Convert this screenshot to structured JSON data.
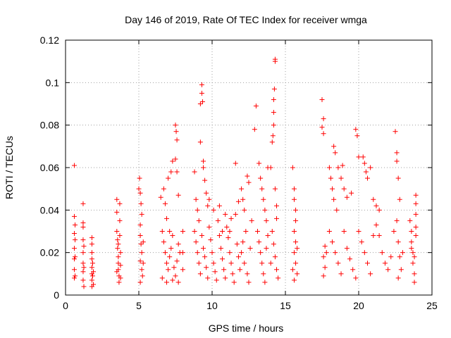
{
  "chart_data": {
    "type": "scatter",
    "title": "Day 146 of 2019, Rate Of TEC Index for receiver wmga",
    "xlabel": "GPS time / hours",
    "ylabel": "ROTI / TECUs",
    "xlim": [
      0,
      25
    ],
    "ylim": [
      0,
      0.12
    ],
    "xticks": [
      0,
      5,
      10,
      15,
      20,
      25
    ],
    "xtick_labels": [
      "0",
      "5",
      "10",
      "15",
      "20",
      "25"
    ],
    "yticks": [
      0,
      0.02,
      0.04,
      0.06,
      0.08,
      0.1,
      0.12
    ],
    "ytick_labels": [
      "0",
      "0.02",
      "0.04",
      "0.06",
      "0.08",
      "0.1",
      "0.12"
    ],
    "grid": true,
    "marker": "+",
    "marker_color": "#ff0000",
    "series": [
      {
        "points": [
          [
            0.6,
            0.061
          ],
          [
            0.6,
            0.037
          ],
          [
            0.6,
            0.029
          ],
          [
            0.6,
            0.022
          ],
          [
            0.6,
            0.017
          ],
          [
            0.6,
            0.012
          ],
          [
            0.6,
            0.008
          ],
          [
            0.65,
            0.033
          ],
          [
            0.65,
            0.026
          ],
          [
            0.65,
            0.018
          ],
          [
            0.65,
            0.009
          ],
          [
            1.2,
            0.043
          ],
          [
            1.2,
            0.034
          ],
          [
            1.2,
            0.032
          ],
          [
            1.2,
            0.026
          ],
          [
            1.2,
            0.02
          ],
          [
            1.2,
            0.015
          ],
          [
            1.2,
            0.011
          ],
          [
            1.2,
            0.007
          ],
          [
            1.25,
            0.023
          ],
          [
            1.25,
            0.013
          ],
          [
            1.25,
            0.004
          ],
          [
            1.8,
            0.027
          ],
          [
            1.8,
            0.024
          ],
          [
            1.8,
            0.02
          ],
          [
            1.8,
            0.017
          ],
          [
            1.8,
            0.013
          ],
          [
            1.8,
            0.01
          ],
          [
            1.8,
            0.007
          ],
          [
            1.8,
            0.004
          ],
          [
            1.85,
            0.015
          ],
          [
            1.85,
            0.009
          ],
          [
            1.9,
            0.011
          ],
          [
            1.9,
            0.005
          ],
          [
            3.5,
            0.045
          ],
          [
            3.5,
            0.039
          ],
          [
            3.5,
            0.03
          ],
          [
            3.55,
            0.026
          ],
          [
            3.55,
            0.022
          ],
          [
            3.6,
            0.018
          ],
          [
            3.6,
            0.015
          ],
          [
            3.6,
            0.012
          ],
          [
            3.65,
            0.009
          ],
          [
            3.65,
            0.006
          ],
          [
            3.7,
            0.043
          ],
          [
            3.7,
            0.035
          ],
          [
            3.7,
            0.028
          ],
          [
            3.75,
            0.02
          ],
          [
            3.75,
            0.014
          ],
          [
            3.75,
            0.008
          ],
          [
            3.5,
            0.011
          ],
          [
            3.6,
            0.024
          ],
          [
            5.0,
            0.05
          ],
          [
            5.05,
            0.055
          ],
          [
            5.1,
            0.048
          ],
          [
            5.15,
            0.043
          ],
          [
            5.2,
            0.038
          ],
          [
            5.1,
            0.033
          ],
          [
            5.1,
            0.028
          ],
          [
            5.15,
            0.024
          ],
          [
            5.2,
            0.02
          ],
          [
            5.1,
            0.016
          ],
          [
            5.2,
            0.012
          ],
          [
            5.25,
            0.009
          ],
          [
            5.1,
            0.006
          ],
          [
            5.3,
            0.025
          ],
          [
            5.3,
            0.015
          ],
          [
            6.5,
            0.046
          ],
          [
            6.7,
            0.05
          ],
          [
            6.8,
            0.043
          ],
          [
            6.9,
            0.036
          ],
          [
            7.0,
            0.055
          ],
          [
            7.1,
            0.03
          ],
          [
            7.2,
            0.058
          ],
          [
            7.3,
            0.063
          ],
          [
            7.5,
            0.08
          ],
          [
            7.55,
            0.077
          ],
          [
            7.6,
            0.073
          ],
          [
            7.5,
            0.064
          ],
          [
            7.6,
            0.058
          ],
          [
            7.7,
            0.047
          ],
          [
            6.6,
            0.03
          ],
          [
            6.7,
            0.025
          ],
          [
            6.8,
            0.02
          ],
          [
            6.9,
            0.015
          ],
          [
            7.0,
            0.012
          ],
          [
            7.1,
            0.018
          ],
          [
            7.2,
            0.022
          ],
          [
            7.3,
            0.028
          ],
          [
            7.4,
            0.013
          ],
          [
            7.5,
            0.009
          ],
          [
            7.6,
            0.016
          ],
          [
            7.7,
            0.024
          ],
          [
            7.8,
            0.02
          ],
          [
            6.6,
            0.008
          ],
          [
            6.9,
            0.006
          ],
          [
            7.3,
            0.007
          ],
          [
            7.7,
            0.006
          ],
          [
            8.0,
            0.02
          ],
          [
            8.0,
            0.012
          ],
          [
            8.0,
            0.03
          ],
          [
            8.8,
            0.058
          ],
          [
            8.9,
            0.045
          ],
          [
            9.0,
            0.04
          ],
          [
            9.1,
            0.035
          ],
          [
            9.2,
            0.09
          ],
          [
            9.2,
            0.072
          ],
          [
            9.3,
            0.099
          ],
          [
            9.3,
            0.095
          ],
          [
            9.35,
            0.091
          ],
          [
            9.4,
            0.063
          ],
          [
            9.4,
            0.06
          ],
          [
            9.5,
            0.054
          ],
          [
            9.6,
            0.048
          ],
          [
            9.7,
            0.042
          ],
          [
            8.8,
            0.03
          ],
          [
            8.9,
            0.025
          ],
          [
            9.0,
            0.02
          ],
          [
            9.1,
            0.015
          ],
          [
            9.2,
            0.01
          ],
          [
            9.3,
            0.028
          ],
          [
            9.4,
            0.022
          ],
          [
            9.5,
            0.018
          ],
          [
            9.6,
            0.013
          ],
          [
            9.7,
            0.008
          ],
          [
            9.8,
            0.032
          ],
          [
            9.9,
            0.026
          ],
          [
            10.0,
            0.02
          ],
          [
            10.1,
            0.015
          ],
          [
            10.2,
            0.011
          ],
          [
            10.3,
            0.007
          ],
          [
            10.4,
            0.035
          ],
          [
            10.5,
            0.028
          ],
          [
            10.6,
            0.022
          ],
          [
            10.7,
            0.017
          ],
          [
            10.8,
            0.012
          ],
          [
            10.9,
            0.008
          ],
          [
            11.0,
            0.032
          ],
          [
            11.1,
            0.027
          ],
          [
            11.2,
            0.02
          ],
          [
            11.3,
            0.015
          ],
          [
            11.4,
            0.01
          ],
          [
            11.5,
            0.006
          ],
          [
            11.6,
            0.038
          ],
          [
            11.7,
            0.024
          ],
          [
            11.8,
            0.018
          ],
          [
            11.9,
            0.012
          ],
          [
            9.8,
            0.045
          ],
          [
            10.1,
            0.04
          ],
          [
            10.5,
            0.042
          ],
          [
            10.9,
            0.038
          ],
          [
            11.3,
            0.036
          ],
          [
            11.6,
            0.062
          ],
          [
            11.8,
            0.044
          ],
          [
            11.2,
            0.03
          ],
          [
            10.7,
            0.03
          ],
          [
            12.0,
            0.05
          ],
          [
            12.1,
            0.045
          ],
          [
            12.2,
            0.04
          ],
          [
            12.4,
            0.056
          ],
          [
            12.5,
            0.053
          ],
          [
            12.3,
            0.03
          ],
          [
            12.1,
            0.025
          ],
          [
            12.0,
            0.02
          ],
          [
            12.2,
            0.015
          ],
          [
            12.4,
            0.01
          ],
          [
            12.5,
            0.006
          ],
          [
            12.6,
            0.022
          ],
          [
            12.7,
            0.035
          ],
          [
            12.9,
            0.078
          ],
          [
            13.0,
            0.089
          ],
          [
            13.2,
            0.062
          ],
          [
            13.3,
            0.055
          ],
          [
            13.4,
            0.05
          ],
          [
            13.5,
            0.045
          ],
          [
            13.6,
            0.04
          ],
          [
            13.7,
            0.035
          ],
          [
            13.8,
            0.06
          ],
          [
            13.1,
            0.03
          ],
          [
            13.2,
            0.025
          ],
          [
            13.3,
            0.02
          ],
          [
            13.4,
            0.015
          ],
          [
            13.5,
            0.01
          ],
          [
            13.6,
            0.006
          ],
          [
            13.7,
            0.022
          ],
          [
            13.8,
            0.028
          ],
          [
            14.0,
            0.06
          ],
          [
            14.1,
            0.072
          ],
          [
            14.15,
            0.075
          ],
          [
            14.2,
            0.08
          ],
          [
            14.2,
            0.086
          ],
          [
            14.2,
            0.092
          ],
          [
            14.25,
            0.097
          ],
          [
            14.3,
            0.11
          ],
          [
            14.3,
            0.111
          ],
          [
            14.3,
            0.05
          ],
          [
            14.4,
            0.042
          ],
          [
            14.4,
            0.036
          ],
          [
            14.1,
            0.03
          ],
          [
            14.2,
            0.024
          ],
          [
            14.3,
            0.018
          ],
          [
            14.4,
            0.012
          ],
          [
            14.5,
            0.008
          ],
          [
            14.0,
            0.015
          ],
          [
            15.5,
            0.06
          ],
          [
            15.6,
            0.05
          ],
          [
            15.6,
            0.045
          ],
          [
            15.7,
            0.04
          ],
          [
            15.7,
            0.035
          ],
          [
            15.6,
            0.03
          ],
          [
            15.7,
            0.025
          ],
          [
            15.6,
            0.02
          ],
          [
            15.7,
            0.015
          ],
          [
            15.8,
            0.01
          ],
          [
            15.6,
            0.007
          ],
          [
            15.8,
            0.022
          ],
          [
            15.5,
            0.012
          ],
          [
            17.5,
            0.092
          ],
          [
            17.6,
            0.083
          ],
          [
            17.5,
            0.079
          ],
          [
            17.6,
            0.076
          ],
          [
            17.7,
            0.023
          ],
          [
            17.6,
            0.018
          ],
          [
            17.7,
            0.013
          ],
          [
            17.6,
            0.009
          ],
          [
            17.8,
            0.02
          ],
          [
            18.0,
            0.06
          ],
          [
            18.1,
            0.055
          ],
          [
            18.2,
            0.05
          ],
          [
            18.3,
            0.07
          ],
          [
            18.4,
            0.067
          ],
          [
            18.3,
            0.045
          ],
          [
            18.5,
            0.04
          ],
          [
            18.6,
            0.06
          ],
          [
            18.8,
            0.055
          ],
          [
            18.9,
            0.061
          ],
          [
            19.0,
            0.05
          ],
          [
            19.2,
            0.046
          ],
          [
            19.5,
            0.048
          ],
          [
            19.8,
            0.078
          ],
          [
            19.9,
            0.075
          ],
          [
            20.0,
            0.065
          ],
          [
            18.0,
            0.03
          ],
          [
            18.2,
            0.025
          ],
          [
            18.4,
            0.02
          ],
          [
            18.6,
            0.015
          ],
          [
            18.8,
            0.01
          ],
          [
            19.0,
            0.03
          ],
          [
            19.2,
            0.022
          ],
          [
            19.4,
            0.017
          ],
          [
            19.6,
            0.012
          ],
          [
            19.8,
            0.008
          ],
          [
            20.0,
            0.03
          ],
          [
            20.2,
            0.025
          ],
          [
            20.4,
            0.02
          ],
          [
            20.6,
            0.015
          ],
          [
            20.8,
            0.01
          ],
          [
            21.0,
            0.028
          ],
          [
            20.3,
            0.065
          ],
          [
            20.4,
            0.062
          ],
          [
            20.5,
            0.058
          ],
          [
            20.6,
            0.055
          ],
          [
            20.8,
            0.06
          ],
          [
            21.0,
            0.045
          ],
          [
            21.2,
            0.042
          ],
          [
            21.4,
            0.04
          ],
          [
            21.2,
            0.033
          ],
          [
            21.4,
            0.028
          ],
          [
            21.6,
            0.02
          ],
          [
            21.8,
            0.015
          ],
          [
            22.0,
            0.012
          ],
          [
            22.2,
            0.018
          ],
          [
            22.4,
            0.03
          ],
          [
            22.5,
            0.077
          ],
          [
            22.6,
            0.067
          ],
          [
            22.6,
            0.063
          ],
          [
            22.7,
            0.055
          ],
          [
            22.8,
            0.045
          ],
          [
            22.6,
            0.035
          ],
          [
            22.7,
            0.025
          ],
          [
            22.8,
            0.018
          ],
          [
            22.9,
            0.012
          ],
          [
            22.7,
            0.008
          ],
          [
            23.0,
            0.02
          ],
          [
            23.5,
            0.035
          ],
          [
            23.6,
            0.03
          ],
          [
            23.6,
            0.025
          ],
          [
            23.7,
            0.02
          ],
          [
            23.7,
            0.015
          ],
          [
            23.8,
            0.01
          ],
          [
            23.8,
            0.006
          ],
          [
            23.9,
            0.047
          ],
          [
            23.9,
            0.043
          ],
          [
            23.9,
            0.038
          ],
          [
            23.9,
            0.032
          ],
          [
            23.9,
            0.028
          ],
          [
            23.6,
            0.022
          ],
          [
            23.8,
            0.018
          ]
        ]
      }
    ]
  }
}
